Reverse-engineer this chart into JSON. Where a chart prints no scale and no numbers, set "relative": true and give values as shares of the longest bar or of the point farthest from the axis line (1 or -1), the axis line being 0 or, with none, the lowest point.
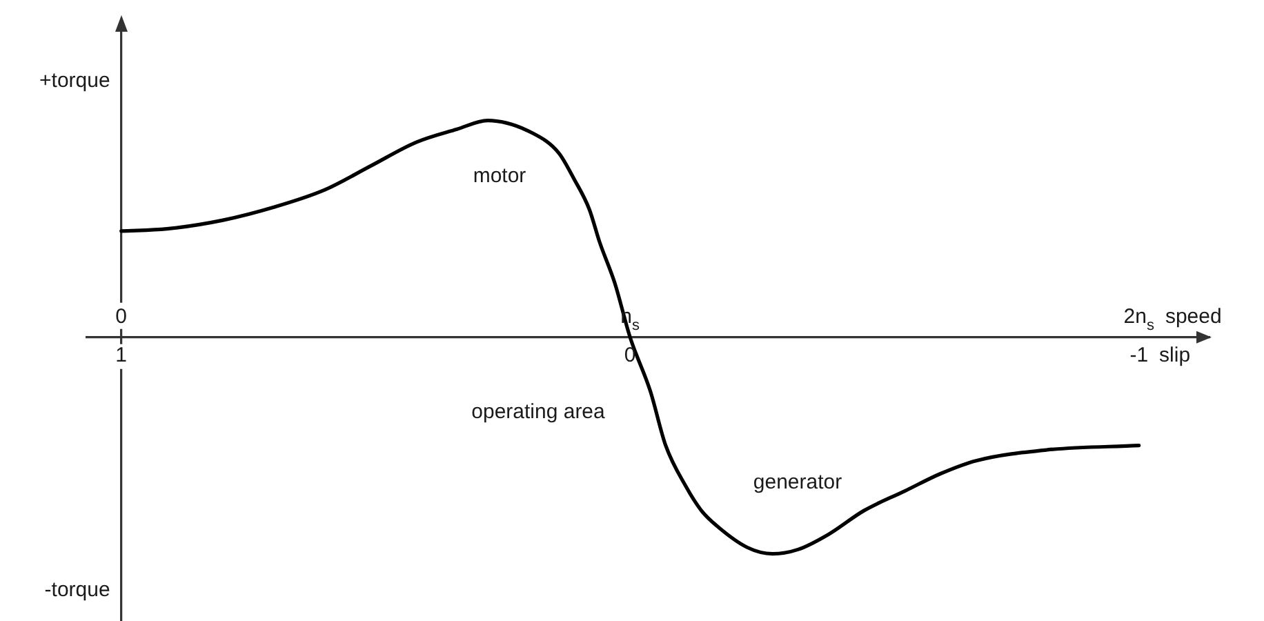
{
  "chart_data": {
    "type": "line",
    "relative": true,
    "xlabel": "slip",
    "x2label": "speed",
    "xlim": [
      1.07,
      -1.14
    ],
    "xticks": [
      1,
      0,
      -1
    ],
    "x2lim": [
      -0.07,
      2.14
    ],
    "x2ticks": [
      0,
      {
        "value": 1,
        "label": "n$_{s}$"
      },
      {
        "value": 2,
        "label": "2n$_{s}$"
      }
    ],
    "x": [
      1,
      0.91,
      0.8,
      0.7,
      0.6,
      0.51,
      0.42,
      0.34,
      0.28,
      0.19,
      0.14,
      0.11,
      0.08,
      0.06,
      0.03,
      0,
      -0.04,
      -0.07,
      -0.11,
      -0.14,
      -0.17,
      -0.23,
      -0.28,
      -0.33,
      -0.39,
      -0.46,
      -0.54,
      -0.61,
      -0.68,
      -0.82,
      -1.0
    ],
    "series": [
      {
        "color": "#000000",
        "values": [
          0.49,
          0.5,
          0.54,
          0.6,
          0.68,
          0.79,
          0.9,
          0.96,
          1.0,
          0.94,
          0.85,
          0.73,
          0.59,
          0.44,
          0.25,
          0,
          -0.25,
          -0.5,
          -0.69,
          -0.8,
          -0.87,
          -0.97,
          -1.0,
          -0.98,
          -0.91,
          -0.8,
          -0.71,
          -0.63,
          -0.57,
          -0.52,
          -0.5
        ]
      }
    ],
    "marker": "none",
    "annotations": [
      "+torque",
      "-torque",
      "motor",
      "operating area",
      "generator"
    ]
  }
}
